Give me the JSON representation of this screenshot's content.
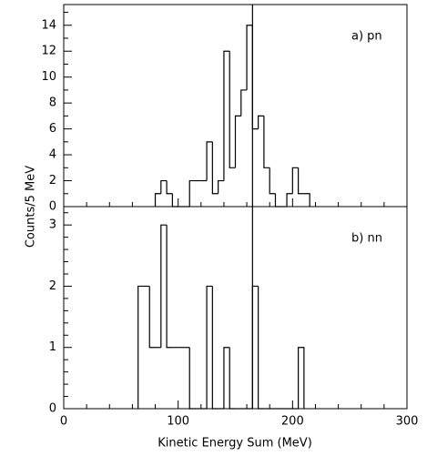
{
  "chart_data": [
    {
      "type": "histogram",
      "annotation": "a) pn",
      "ylabel": "Counts/5 MeV",
      "bins": [
        80,
        85,
        90,
        95,
        100,
        105,
        110,
        115,
        120,
        125,
        130,
        135,
        140,
        145,
        150,
        155,
        160,
        165,
        170,
        175,
        180,
        185,
        190,
        195,
        200,
        205,
        210,
        215
      ],
      "counts": [
        1,
        2,
        1,
        0,
        0,
        0,
        2,
        2,
        2,
        5,
        1,
        2,
        12,
        3,
        7,
        9,
        14,
        6,
        7,
        3,
        1,
        0,
        0,
        1,
        3,
        1,
        1
      ],
      "color": "#000000",
      "vline": 165,
      "xlim": [
        0,
        300
      ],
      "xticks": [
        0,
        100,
        200,
        300
      ],
      "xminorticks": [
        20,
        40,
        60,
        80,
        120,
        140,
        160,
        180,
        220,
        240,
        260,
        280
      ],
      "ylim": [
        0,
        15.6
      ],
      "yticks": [
        0,
        2,
        4,
        6,
        8,
        10,
        12,
        14
      ],
      "yminorticks": [
        1,
        3,
        5,
        7,
        9,
        11,
        13,
        15
      ]
    },
    {
      "type": "histogram",
      "annotation": "b) nn",
      "xlabel": "Kinetic Energy Sum (MeV)",
      "bins": [
        65,
        70,
        75,
        80,
        85,
        90,
        95,
        100,
        105,
        110,
        115,
        120,
        125,
        130,
        135,
        140,
        145,
        150,
        155,
        160,
        165,
        170,
        175,
        180,
        185,
        190,
        195,
        200,
        205,
        210
      ],
      "counts": [
        2,
        2,
        1,
        1,
        3,
        1,
        1,
        1,
        1,
        0,
        0,
        0,
        2,
        0,
        0,
        1,
        0,
        0,
        0,
        0,
        2,
        0,
        0,
        0,
        0,
        0,
        0,
        0,
        1
      ],
      "color": "#000000",
      "vline": 165,
      "xlim": [
        0,
        300
      ],
      "xticks": [
        0,
        100,
        200,
        300
      ],
      "xminorticks": [
        20,
        40,
        60,
        80,
        120,
        140,
        160,
        180,
        220,
        240,
        260,
        280
      ],
      "ylim": [
        0,
        3.3
      ],
      "yticks": [
        0,
        1,
        2,
        3
      ],
      "yminorticks": [
        0.2,
        0.4,
        0.6,
        0.8,
        1.2,
        1.4,
        1.6,
        1.8,
        2.2,
        2.4,
        2.6,
        2.8,
        3.2
      ]
    }
  ]
}
